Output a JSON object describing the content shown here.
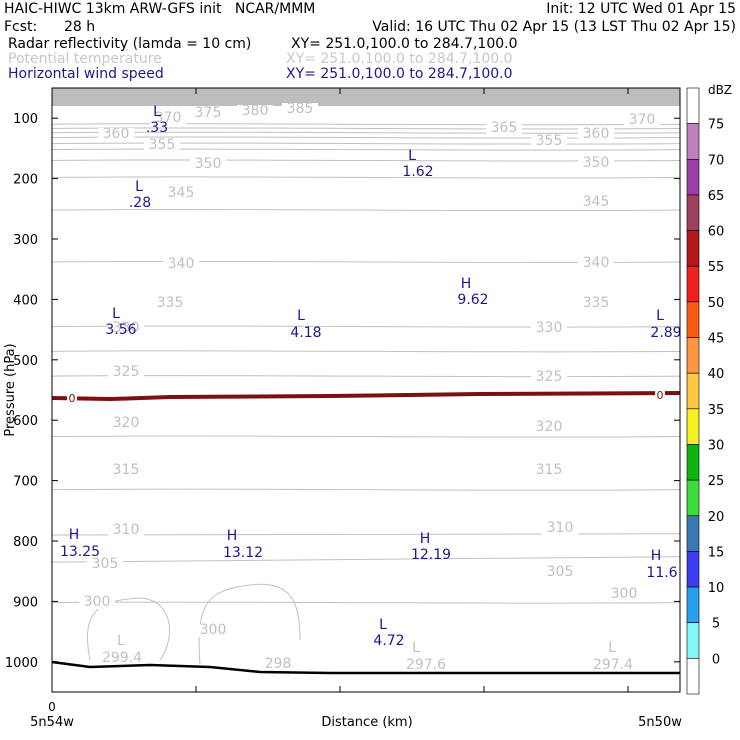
{
  "header": {
    "title": "HAIC-HIWC 13km ARW-GFS init   NCAR/MMM",
    "init": "Init: 12 UTC Wed 01 Apr 15",
    "fcst_label": "Fcst:",
    "fcst_value": "28 h",
    "valid": "Valid: 16 UTC Thu 02 Apr 15 (13 LST Thu 02 Apr 15)",
    "fields": [
      {
        "name": "Radar reflectivity (lamda = 10 cm)",
        "xy": "XY= 251.0,100.0 to 284.7,100.0",
        "color": "#000000"
      },
      {
        "name": "Potential temperature",
        "xy": "XY= 251.0,100.0 to 284.7,100.0",
        "color": "#c8c8c8"
      },
      {
        "name": "Horizontal wind speed",
        "xy": "XY= 251.0,100.0 to 284.7,100.0",
        "color": "#1a1a8c"
      }
    ]
  },
  "chart_data": {
    "type": "contour",
    "ylabel": "Pressure (hPa)",
    "xlabel": "Distance (km)",
    "x_left_label": "5n54w",
    "x_right_label": "5n50w",
    "x_zero_label": "0",
    "y_ticks": [
      "100",
      "200",
      "300",
      "400",
      "500",
      "600",
      "700",
      "800",
      "900",
      "1000"
    ],
    "ylim": [
      50,
      1050
    ],
    "theta_contours": [
      {
        "level": 300,
        "labels": [
          "300",
          "300",
          "300"
        ]
      },
      {
        "level": 305,
        "labels": [
          "305",
          "305"
        ]
      },
      {
        "level": 310,
        "labels": [
          "310",
          "310"
        ]
      },
      {
        "level": 315,
        "labels": [
          "315",
          "315"
        ]
      },
      {
        "level": 320,
        "labels": [
          "320",
          "320"
        ]
      },
      {
        "level": 325,
        "labels": [
          "325",
          "325"
        ]
      },
      {
        "level": 330,
        "labels": [
          "330",
          "330"
        ]
      },
      {
        "level": 335,
        "labels": [
          "335",
          "335"
        ]
      },
      {
        "level": 340,
        "labels": [
          "340",
          "340"
        ]
      },
      {
        "level": 345,
        "labels": [
          "345",
          "345"
        ]
      },
      {
        "level": 350,
        "labels": [
          "350",
          "350"
        ]
      },
      {
        "level": 355,
        "labels": [
          "355",
          "355"
        ]
      },
      {
        "level": 360,
        "labels": [
          "360",
          "360"
        ]
      },
      {
        "level": 365,
        "labels": [
          "365"
        ]
      },
      {
        "level": 370,
        "labels": [
          "370",
          "370"
        ]
      },
      {
        "level": 375,
        "labels": [
          "375"
        ]
      },
      {
        "level": 380,
        "labels": [
          "380"
        ]
      },
      {
        "level": 385,
        "labels": [
          "385"
        ]
      }
    ],
    "theta_extrema": [
      {
        "type": "L",
        "value": "299.4"
      },
      {
        "type": "",
        "value": "298"
      },
      {
        "type": "L",
        "value": "297.6"
      },
      {
        "type": "L",
        "value": "297.4"
      }
    ],
    "wind_extrema": [
      {
        "type": "L",
        "value": ".33"
      },
      {
        "type": "L",
        "value": "1.62"
      },
      {
        "type": "L",
        "value": ".28"
      },
      {
        "type": "H",
        "value": "9.62"
      },
      {
        "type": "L",
        "value": "3.56"
      },
      {
        "type": "L",
        "value": "4.18"
      },
      {
        "type": "L",
        "value": "2.89"
      },
      {
        "type": "H",
        "value": "13.25"
      },
      {
        "type": "H",
        "value": "13.12"
      },
      {
        "type": "H",
        "value": "12.19"
      },
      {
        "type": "H",
        "value": "11.6"
      },
      {
        "type": "L",
        "value": "4.72"
      }
    ],
    "reflectivity_contour": {
      "value": 0,
      "label": "0",
      "pressure_hpa": 560
    },
    "colorbar": {
      "title": "dBZ",
      "ticks": [
        "75",
        "70",
        "65",
        "60",
        "55",
        "50",
        "45",
        "40",
        "35",
        "30",
        "25",
        "20",
        "15",
        "10",
        "5",
        "0"
      ],
      "colors": [
        "#ffffff",
        "#c080c0",
        "#9c40a8",
        "#a04060",
        "#b41818",
        "#f02020",
        "#ff5a14",
        "#ff9640",
        "#ffc840",
        "#f8f020",
        "#10b410",
        "#3cdc3c",
        "#3c78b4",
        "#3c3cf0",
        "#28a0f0",
        "#80f8f8",
        "#ffffff"
      ]
    }
  }
}
